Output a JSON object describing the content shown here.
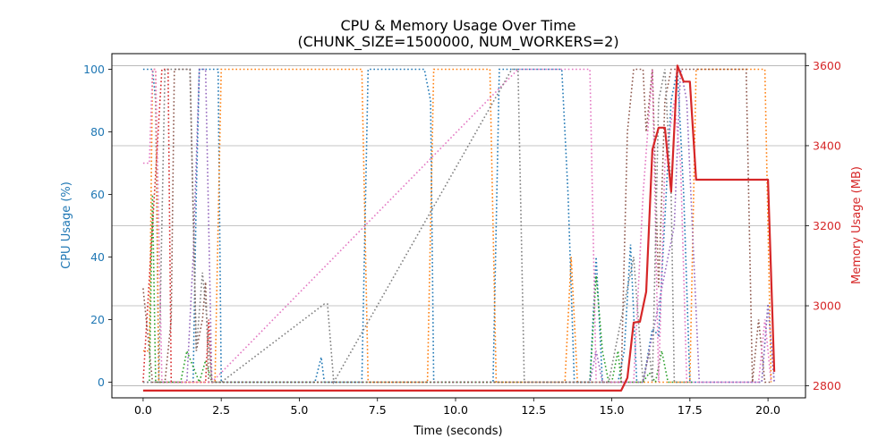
{
  "chart_data": {
    "type": "line",
    "title_lines": [
      "CPU & Memory Usage Over Time",
      "(CHUNK_SIZE=1500000, NUM_WORKERS=2)"
    ],
    "xlabel": "Time (seconds)",
    "ylabel_left": "CPU Usage (%)",
    "ylabel_right": "Memory Usage (MB)",
    "xlim": [
      -1.0,
      21.2
    ],
    "ylim_left": [
      -5,
      105
    ],
    "ylim_right": [
      2770,
      3630
    ],
    "xticks": [
      0.0,
      2.5,
      5.0,
      7.5,
      10.0,
      12.5,
      15.0,
      17.5,
      20.0
    ],
    "xtick_labels": [
      "0.0",
      "2.5",
      "5.0",
      "7.5",
      "10.0",
      "12.5",
      "15.0",
      "17.5",
      "20.0"
    ],
    "yticks_left": [
      0,
      20,
      40,
      60,
      80,
      100
    ],
    "ytick_labels_left": [
      "0",
      "20",
      "40",
      "60",
      "80",
      "100"
    ],
    "yticks_right": [
      2800,
      3000,
      3200,
      3400,
      3600
    ],
    "ytick_labels_right": [
      "2800",
      "3000",
      "3200",
      "3400",
      "3600"
    ],
    "grid": "horizontal grid at right-axis ticks",
    "cpu_series": [
      {
        "color": "#1f77b4",
        "x": [
          0.0,
          0.2,
          0.3,
          0.4,
          0.5,
          0.8,
          1.0,
          1.6,
          1.7,
          1.8,
          1.9,
          2.0,
          2.1,
          2.4,
          2.5,
          5.5,
          5.7,
          5.8,
          7.0,
          7.2,
          7.3,
          9.0,
          9.2,
          9.3,
          11.2,
          11.4,
          11.6,
          11.8,
          13.4,
          13.6,
          13.8,
          14.3,
          14.5,
          14.7,
          15.2,
          15.4,
          15.6,
          15.8,
          16.0,
          16.3,
          16.5,
          16.9,
          17.1,
          17.3,
          17.5,
          17.7,
          19.8,
          20.0,
          20.2
        ],
        "y": [
          100,
          100,
          100,
          90,
          0,
          0,
          0,
          0,
          60,
          100,
          100,
          100,
          100,
          100,
          0,
          0,
          8,
          0,
          0,
          100,
          100,
          100,
          90,
          0,
          0,
          100,
          100,
          100,
          100,
          60,
          0,
          0,
          40,
          0,
          0,
          10,
          44,
          0,
          0,
          17,
          15,
          90,
          100,
          60,
          0,
          0,
          0,
          25,
          0
        ]
      },
      {
        "color": "#ff7f0e",
        "x": [
          0.0,
          0.2,
          0.3,
          0.4,
          0.5,
          0.8,
          1.0,
          1.6,
          1.7,
          2.0,
          2.1,
          2.3,
          2.5,
          7.0,
          7.2,
          9.1,
          9.3,
          11.1,
          11.3,
          13.5,
          13.7,
          13.9,
          14.5,
          14.7,
          15.5,
          15.7,
          16.0,
          16.5,
          16.7,
          17.5,
          17.7,
          19.9,
          20.1
        ],
        "y": [
          10,
          10,
          100,
          100,
          0,
          0,
          0,
          0,
          0,
          0,
          0,
          0,
          100,
          100,
          0,
          0,
          100,
          100,
          0,
          0,
          40,
          0,
          0,
          0,
          0,
          0,
          0,
          0,
          0,
          0,
          100,
          100,
          0
        ]
      },
      {
        "color": "#2ca02c",
        "x": [
          0.0,
          0.2,
          0.3,
          0.4,
          1.0,
          1.2,
          1.4,
          1.8,
          2.0,
          2.2,
          2.4,
          14.3,
          14.5,
          14.7,
          14.9,
          15.0,
          15.2,
          15.3,
          15.8,
          16.0,
          16.2,
          16.4,
          16.6,
          16.8,
          17.0,
          17.1,
          17.4,
          17.6
        ],
        "y": [
          0,
          0,
          60,
          0,
          0,
          0,
          10,
          0,
          7,
          0,
          0,
          0,
          34,
          10,
          0,
          0,
          10,
          0,
          0,
          0,
          3,
          0,
          10,
          0,
          0,
          0,
          0,
          0
        ]
      },
      {
        "color": "#d62728",
        "x": [
          0.0,
          0.6,
          0.8,
          0.9,
          1.0,
          1.1,
          2.0,
          2.1,
          2.2,
          2.3
        ],
        "y": [
          0,
          100,
          100,
          0,
          0,
          0,
          0,
          20,
          0,
          0
        ]
      },
      {
        "color": "#9467bd",
        "x": [
          0.0,
          1.4,
          1.6,
          1.8,
          2.0,
          2.2,
          14.3,
          14.5,
          14.7,
          15.5,
          15.7,
          16.0,
          17.0,
          17.2,
          17.4,
          17.8,
          19.6,
          19.8,
          20.0,
          20.2
        ],
        "y": [
          0,
          0,
          40,
          100,
          100,
          0,
          0,
          10,
          0,
          0,
          0,
          0,
          50,
          100,
          90,
          0,
          0,
          0,
          25,
          0
        ]
      },
      {
        "color": "#8c564b",
        "x": [
          0.0,
          0.3,
          0.5,
          0.7,
          0.9,
          1.0,
          1.1,
          1.5,
          1.7,
          1.9,
          2.0,
          2.1,
          2.3,
          2.5,
          4.0,
          15.3,
          15.5,
          15.7,
          15.9,
          16.0,
          16.1,
          16.3,
          16.5,
          16.7,
          16.9,
          17.1,
          17.3,
          17.5,
          19.3,
          19.5,
          19.7,
          19.9,
          20.1
        ],
        "y": [
          30,
          0,
          0,
          0,
          20,
          100,
          100,
          100,
          10,
          20,
          32,
          0,
          0,
          0,
          0,
          0,
          80,
          100,
          100,
          100,
          80,
          100,
          30,
          90,
          100,
          100,
          100,
          100,
          100,
          0,
          20,
          0,
          0
        ]
      },
      {
        "color": "#e377c2",
        "x": [
          0.0,
          0.2,
          0.3,
          0.4,
          0.6,
          0.8,
          1.0,
          1.8,
          2.0,
          2.2,
          12.0,
          12.2,
          14.3,
          14.5,
          14.7,
          15.3,
          15.5,
          15.7,
          16.0,
          16.3,
          16.5,
          16.7,
          17.0,
          17.2,
          17.4,
          17.6,
          17.8,
          19.7,
          19.9,
          20.1
        ],
        "y": [
          70,
          70,
          100,
          100,
          0,
          0,
          0,
          0,
          0,
          0,
          100,
          100,
          100,
          0,
          0,
          0,
          0,
          0,
          60,
          100,
          0,
          70,
          90,
          70,
          0,
          0,
          0,
          0,
          20,
          0
        ]
      },
      {
        "color": "#7f7f7f",
        "x": [
          0.0,
          0.5,
          0.7,
          0.9,
          1.5,
          1.7,
          1.9,
          2.0,
          2.2,
          2.5,
          5.8,
          5.9,
          6.1,
          11.8,
          12.0,
          12.2,
          12.4,
          14.5,
          14.7,
          14.9,
          15.5,
          15.7,
          16.0,
          16.2,
          16.3,
          16.5,
          16.7,
          16.9,
          17.0,
          17.2,
          17.4
        ],
        "y": [
          0,
          0,
          100,
          100,
          100,
          10,
          35,
          25,
          0,
          0,
          25,
          25,
          0,
          100,
          100,
          0,
          0,
          0,
          0,
          0,
          30,
          40,
          0,
          10,
          0,
          90,
          100,
          60,
          0,
          0,
          0
        ]
      }
    ],
    "memory_series": {
      "color": "#d62728",
      "x": [
        0.0,
        15.3,
        15.5,
        15.7,
        15.9,
        16.1,
        16.3,
        16.5,
        16.7,
        16.9,
        17.1,
        17.3,
        17.5,
        17.7,
        20.0,
        20.2
      ],
      "y": [
        2788,
        2788,
        2820,
        2958,
        2960,
        3035,
        3390,
        3445,
        3445,
        3285,
        3600,
        3560,
        3560,
        3315,
        3315,
        2835
      ]
    }
  }
}
